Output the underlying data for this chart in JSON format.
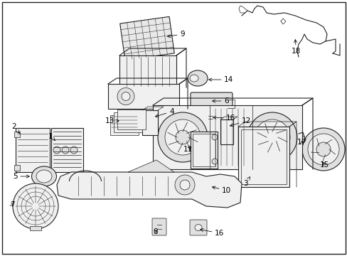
{
  "bg_color": "#ffffff",
  "border_color": "#000000",
  "text_color": "#000000",
  "fig_width": 4.89,
  "fig_height": 3.6,
  "dpi": 100,
  "lw_part": 0.8,
  "lw_thin": 0.5,
  "part_edge": "#222222",
  "part_fill": "#f0f0f0",
  "part_fill2": "#e0e0e0",
  "annotation_fontsize": 7.5
}
